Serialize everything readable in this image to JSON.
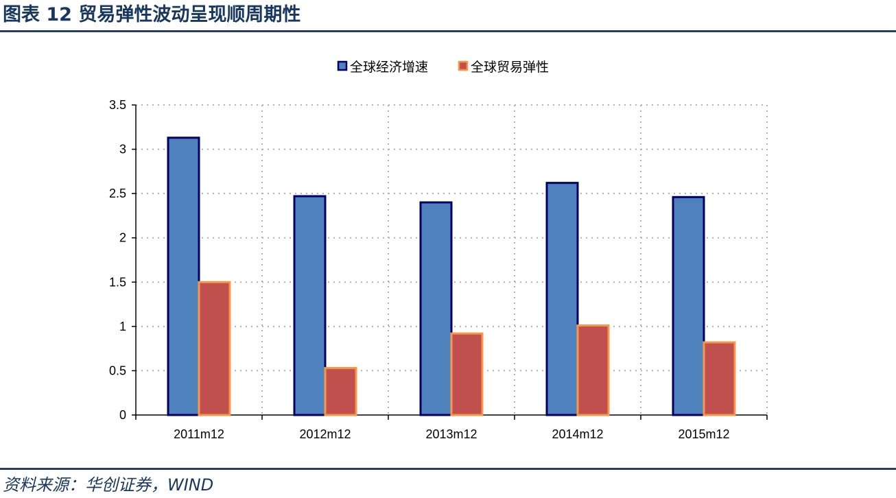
{
  "header": {
    "title": "图表 12 贸易弹性波动呈现顺周期性"
  },
  "footer": {
    "source": "资料来源：华创证券，WIND"
  },
  "chart_data": {
    "type": "bar",
    "categories": [
      "2011m12",
      "2012m12",
      "2013m12",
      "2014m12",
      "2015m12"
    ],
    "series": [
      {
        "name": "全球经济增速",
        "values": [
          3.13,
          2.47,
          2.4,
          2.62,
          2.46
        ],
        "color": "#4f81bd",
        "stroke": "#000066"
      },
      {
        "name": "全球贸易弹性",
        "values": [
          1.5,
          0.53,
          0.92,
          1.01,
          0.82
        ],
        "color": "#c0504d",
        "stroke": "#f79646"
      }
    ],
    "ylim": [
      0,
      3.5
    ],
    "yticks": [
      "0",
      "0.5",
      "1",
      "1.5",
      "2",
      "2.5",
      "3",
      "3.5"
    ],
    "xlabel": "",
    "ylabel": "",
    "grid": true,
    "grid_style": "dotted",
    "legend_position": "top-center"
  }
}
